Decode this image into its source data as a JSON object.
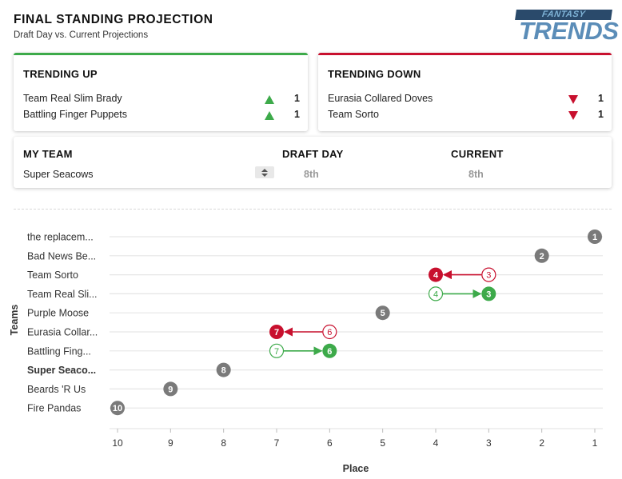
{
  "header": {
    "title": "FINAL STANDING PROJECTION",
    "subtitle": "Draft Day vs. Current Projections"
  },
  "logo": {
    "top": "FANTASY",
    "main": "TRENDS"
  },
  "trending_up": {
    "title": "TRENDING UP",
    "items": [
      {
        "name": "Team Real Slim Brady",
        "delta": "1"
      },
      {
        "name": "Battling Finger Puppets",
        "delta": "1"
      }
    ]
  },
  "trending_down": {
    "title": "TRENDING DOWN",
    "items": [
      {
        "name": "Eurasia Collared Doves",
        "delta": "1"
      },
      {
        "name": "Team Sorto",
        "delta": "1"
      }
    ]
  },
  "my_team": {
    "label": "MY TEAM",
    "value": "Super Seacows",
    "draft_day_label": "DRAFT DAY",
    "draft_day_value": "8th",
    "current_label": "CURRENT",
    "current_value": "8th"
  },
  "colors": {
    "up": "#3daa4a",
    "down": "#c8102e",
    "neutral": "#7a7a7a"
  },
  "chart_data": {
    "type": "scatter",
    "ylabel": "Teams",
    "xlabel": "Place",
    "x_ticks": [
      "10",
      "9",
      "8",
      "7",
      "6",
      "5",
      "4",
      "3",
      "2",
      "1"
    ],
    "x_range": [
      10,
      1
    ],
    "teams": [
      {
        "label": "the replacem...",
        "draft": 1,
        "current": 1,
        "bold": false
      },
      {
        "label": "Bad News Be...",
        "draft": 2,
        "current": 2,
        "bold": false
      },
      {
        "label": "Team Sorto",
        "draft": 3,
        "current": 4,
        "bold": false
      },
      {
        "label": "Team Real Sli...",
        "draft": 4,
        "current": 3,
        "bold": false
      },
      {
        "label": "Purple Moose",
        "draft": 5,
        "current": 5,
        "bold": false
      },
      {
        "label": "Eurasia Collar...",
        "draft": 6,
        "current": 7,
        "bold": false
      },
      {
        "label": "Battling Fing...",
        "draft": 7,
        "current": 6,
        "bold": false
      },
      {
        "label": "Super Seaco...",
        "draft": 8,
        "current": 8,
        "bold": true
      },
      {
        "label": "Beards 'R Us",
        "draft": 9,
        "current": 9,
        "bold": false
      },
      {
        "label": "Fire Pandas",
        "draft": 10,
        "current": 10,
        "bold": false
      }
    ]
  }
}
